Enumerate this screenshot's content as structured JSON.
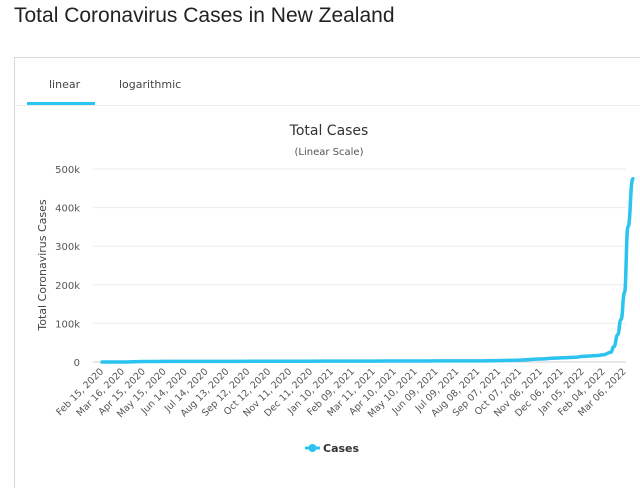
{
  "page_title": "Total Coronavirus Cases in New Zealand",
  "tabs": [
    {
      "label": "linear",
      "active": true
    },
    {
      "label": "logarithmic",
      "active": false
    }
  ],
  "colors": {
    "series": "#2bc3f0",
    "accent": "#2bc3f0"
  },
  "chart_data": {
    "type": "line",
    "title": "Total Cases",
    "subtitle": "(Linear Scale)",
    "ylabel": "Total Coronavirus Cases",
    "xlabel": "",
    "ylim": [
      0,
      500000
    ],
    "yticks": [
      0,
      100000,
      200000,
      300000,
      400000,
      500000
    ],
    "ytick_labels": [
      "0",
      "100k",
      "200k",
      "300k",
      "400k",
      "500k"
    ],
    "grid": true,
    "legend": "bottom",
    "x_tick_labels": [
      "Feb 15, 2020",
      "Mar 16, 2020",
      "Apr 15, 2020",
      "May 15, 2020",
      "Jun 14, 2020",
      "Jul 14, 2020",
      "Aug 13, 2020",
      "Sep 12, 2020",
      "Oct 12, 2020",
      "Nov 11, 2020",
      "Dec 11, 2020",
      "Jan 10, 2021",
      "Feb 09, 2021",
      "Mar 11, 2021",
      "Apr 10, 2021",
      "May 10, 2021",
      "Jun 09, 2021",
      "Jul 09, 2021",
      "Aug 08, 2021",
      "Sep 07, 2021",
      "Oct 07, 2021",
      "Nov 06, 2021",
      "Dec 06, 2021",
      "Jan 05, 2022",
      "Feb 04, 2022",
      "Mar 06, 2022"
    ],
    "series": [
      {
        "name": "Cases",
        "x": [
          "Feb 15, 2020",
          "Mar 16, 2020",
          "Apr 15, 2020",
          "May 15, 2020",
          "Jun 14, 2020",
          "Jul 14, 2020",
          "Aug 13, 2020",
          "Sep 12, 2020",
          "Oct 12, 2020",
          "Nov 11, 2020",
          "Dec 11, 2020",
          "Jan 10, 2021",
          "Feb 09, 2021",
          "Mar 11, 2021",
          "Apr 10, 2021",
          "May 10, 2021",
          "Jun 09, 2021",
          "Jul 09, 2021",
          "Aug 08, 2021",
          "Sep 07, 2021",
          "Oct 07, 2021",
          "Nov 06, 2021",
          "Nov 26, 2021",
          "Dec 06, 2021",
          "Dec 26, 2021",
          "Jan 05, 2022",
          "Jan 25, 2022",
          "Feb 04, 2022",
          "Feb 14, 2022",
          "Feb 19, 2022",
          "Feb 24, 2022",
          "Mar 01, 2022",
          "Mar 06, 2022",
          "Mar 11, 2022",
          "Mar 18, 2022"
        ],
        "values": [
          0,
          8,
          1400,
          1500,
          1520,
          1550,
          1650,
          1800,
          1880,
          1990,
          2130,
          2260,
          2350,
          2440,
          2600,
          2650,
          2730,
          2830,
          2880,
          3700,
          5000,
          7800,
          10000,
          11000,
          12500,
          14500,
          16500,
          19000,
          25000,
          40000,
          70000,
          110000,
          180000,
          350000,
          475000
        ]
      }
    ]
  }
}
